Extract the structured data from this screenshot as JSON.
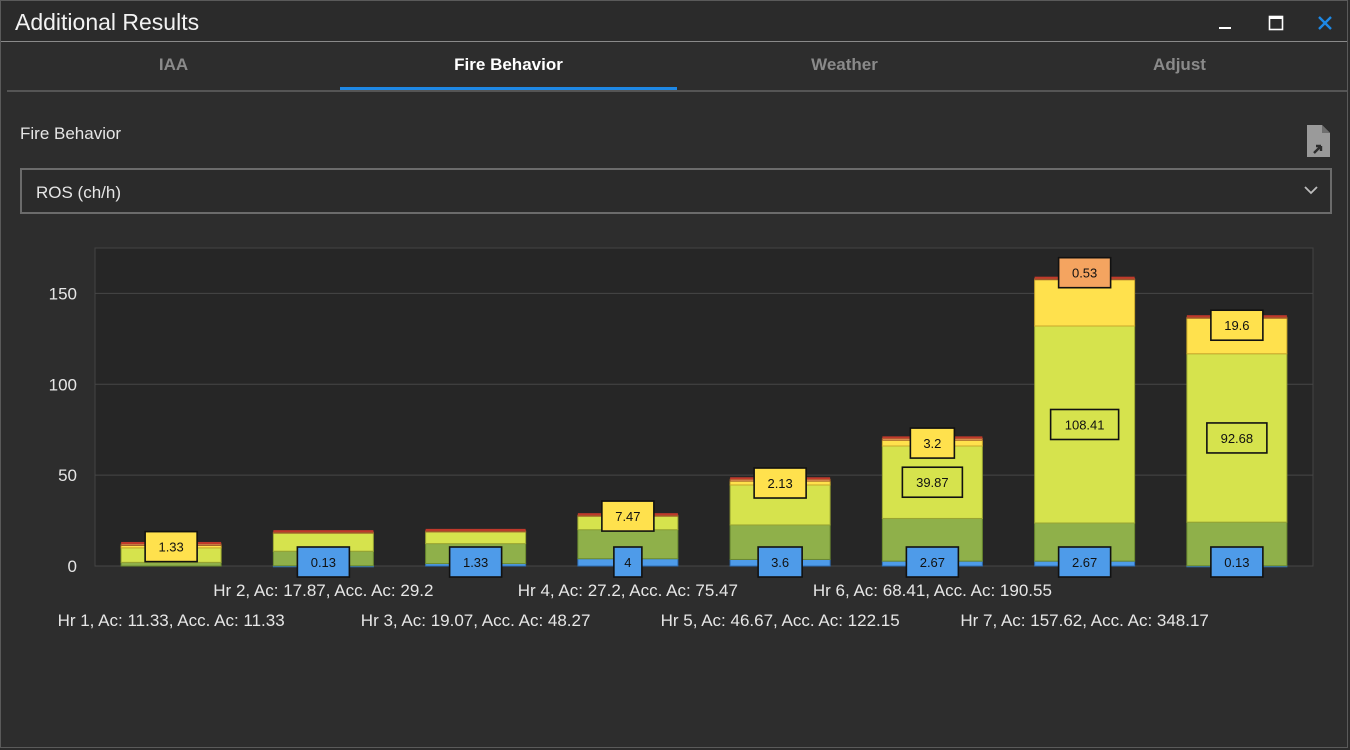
{
  "window": {
    "title": "Additional Results",
    "minimize_icon": "minimize-icon",
    "maximize_icon": "maximize-icon",
    "close_icon": "close-icon"
  },
  "tabs": [
    {
      "label": "IAA",
      "active": false
    },
    {
      "label": "Fire Behavior",
      "active": true
    },
    {
      "label": "Weather",
      "active": false
    },
    {
      "label": "Adjust",
      "active": false
    }
  ],
  "main": {
    "section_label": "Fire Behavior",
    "export_icon": "export-document-icon",
    "select": {
      "value": "ROS (ch/h)"
    }
  },
  "colors": {
    "blue": "#4e9be9",
    "green": "#8fb04a",
    "lime": "#d6e34d",
    "yellow": "#ffe14d",
    "orange": "#f4a460",
    "red": "#c0392b",
    "accent": "#1e88e5"
  },
  "chart_data": {
    "type": "bar",
    "stacked": true,
    "categories": [
      "Hr 1, Ac: 11.33, Acc. Ac: 11.33",
      "Hr 2, Ac: 17.87, Acc. Ac: 29.2",
      "Hr 3, Ac: 19.07, Acc. Ac: 48.27",
      "Hr 4, Ac: 27.2, Acc. Ac: 75.47",
      "Hr 5, Ac: 46.67, Acc. Ac: 122.15",
      "Hr 6, Ac: 68.41, Acc. Ac: 190.55",
      "Hr 7, Ac: 157.62, Acc. Ac: 348.17",
      ""
    ],
    "series": [
      {
        "color": "#4e9be9",
        "values": [
          0,
          0.13,
          1.33,
          4,
          3.6,
          2.67,
          2.67,
          0.13
        ]
      },
      {
        "color": "#8fb04a",
        "values": [
          2,
          8,
          11,
          16,
          19,
          23.5,
          21,
          24
        ]
      },
      {
        "color": "#d6e34d",
        "values": [
          8,
          10,
          6.5,
          7.47,
          22,
          39.87,
          108.41,
          92.68
        ]
      },
      {
        "color": "#ffe14d",
        "values": [
          1.33,
          0,
          0,
          0,
          2.13,
          3.2,
          25.5,
          19.6
        ]
      },
      {
        "color": "#f4a460",
        "values": [
          0.8,
          0.5,
          0.5,
          0.5,
          1,
          1,
          0.53,
          0.5
        ]
      }
    ],
    "data_labels": [
      {
        "bar": 0,
        "text": "1.33",
        "style": "yellow"
      },
      {
        "bar": 1,
        "text": "0.13",
        "style": "blue"
      },
      {
        "bar": 2,
        "text": "1.33",
        "style": "blue"
      },
      {
        "bar": 3,
        "text": "4",
        "style": "blue"
      },
      {
        "bar": 3,
        "text": "7.47",
        "style": "yellow"
      },
      {
        "bar": 4,
        "text": "3.6",
        "style": "blue"
      },
      {
        "bar": 4,
        "text": "2.13",
        "style": "yellow"
      },
      {
        "bar": 5,
        "text": "2.67",
        "style": "blue"
      },
      {
        "bar": 5,
        "text": "39.87",
        "style": "lime"
      },
      {
        "bar": 5,
        "text": "3.2",
        "style": "yellow"
      },
      {
        "bar": 6,
        "text": "2.67",
        "style": "blue"
      },
      {
        "bar": 6,
        "text": "108.41",
        "style": "lime"
      },
      {
        "bar": 6,
        "text": "0.53",
        "style": "orange"
      },
      {
        "bar": 7,
        "text": "0.13",
        "style": "blue"
      },
      {
        "bar": 7,
        "text": "92.68",
        "style": "lime"
      },
      {
        "bar": 7,
        "text": "19.6",
        "style": "yellow"
      }
    ],
    "yticks": [
      0,
      50,
      100,
      150
    ],
    "ylim": [
      0,
      175
    ],
    "grid": true,
    "title": "",
    "xlabel": "",
    "ylabel": ""
  }
}
